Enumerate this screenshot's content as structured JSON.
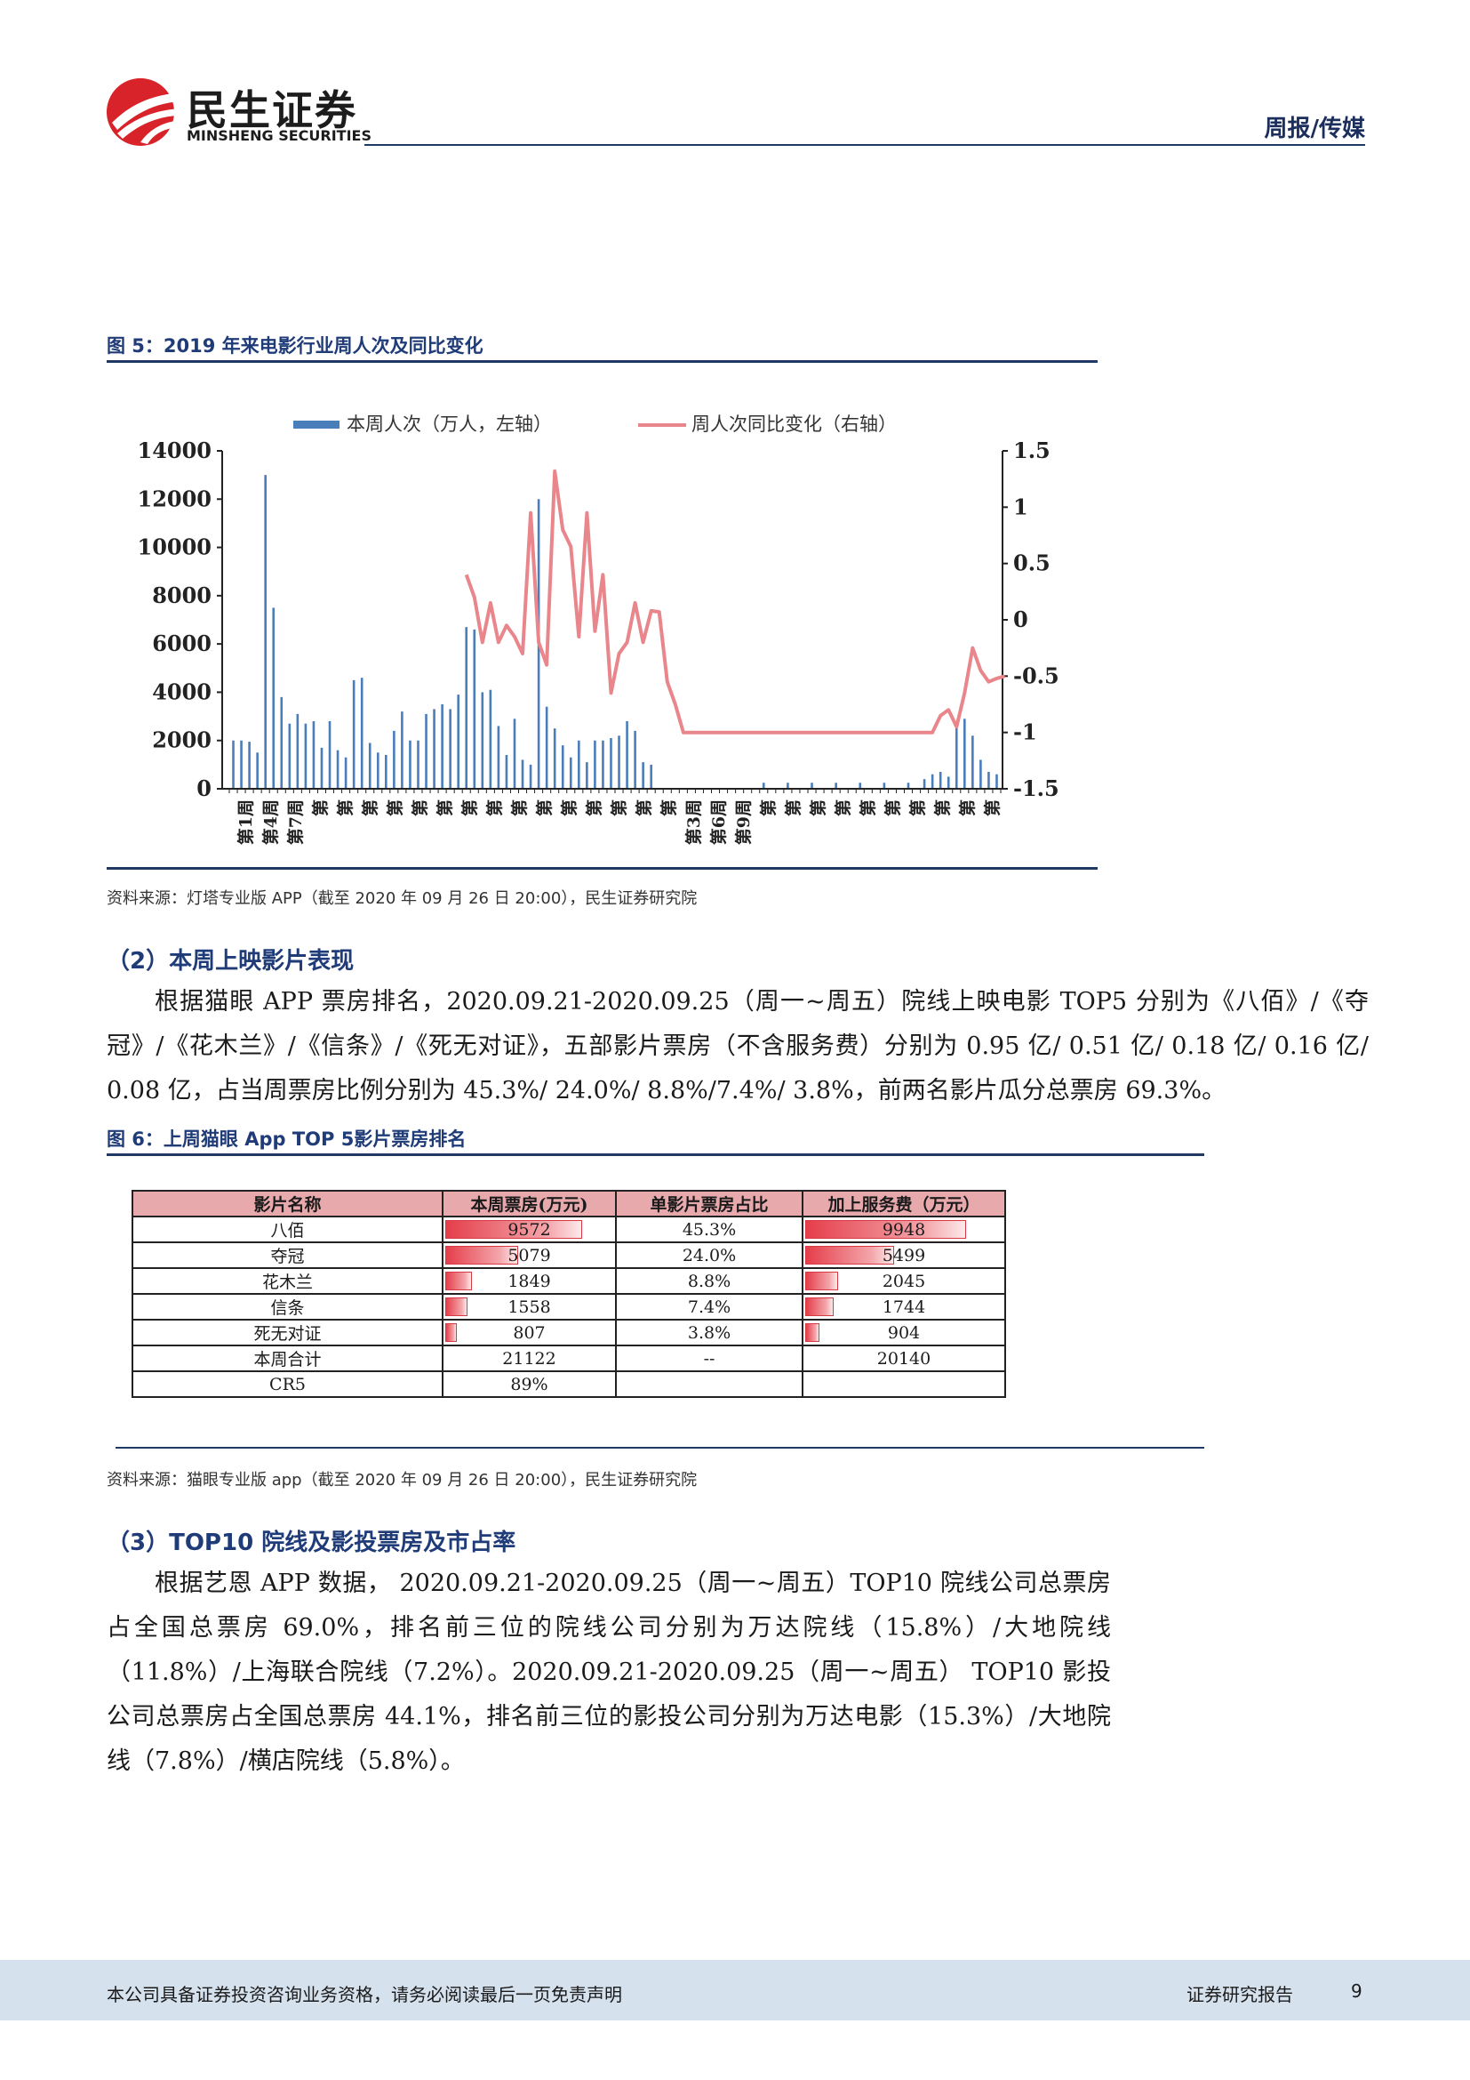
{
  "header": {
    "company_cn": "民生证券",
    "company_en": "MINSHENG SECURITIES",
    "category": "周报/传媒"
  },
  "figure5": {
    "title": "图 5：2019 年来电影行业周人次及同比变化",
    "source": "资料来源：灯塔专业版 APP（截至 2020 年 09 月 26 日 20:00），民生证券研究院"
  },
  "section2": {
    "title": "（2）本周上映影片表现",
    "paragraph": "根据猫眼 APP 票房排名，2020.09.21-2020.09.25（周一~周五）院线上映电影 TOP5 分别为《八佰》/《夺冠》/《花木兰》/《信条》/《死无对证》，五部影片票房（不含服务费）分别为 0.95 亿/ 0.51 亿/ 0.18 亿/ 0.16 亿/ 0.08 亿，占当周票房比例分别为 45.3%/ 24.0%/ 8.8%/7.4%/ 3.8%，前两名影片瓜分总票房 69.3%。"
  },
  "figure6": {
    "title": "图 6：上周猫眼 App TOP 5影片票房排名",
    "source": "资料来源：猫眼专业版 app（截至 2020 年 09 月 26 日 20:00），民生证券研究院",
    "headers": [
      "影片名称",
      "本周票房(万元)",
      "单影片票房占比",
      "加上服务费（万元）"
    ],
    "rows": [
      {
        "name": "八佰",
        "box": "9572",
        "box_frac": 1.0,
        "share": "45.3%",
        "with_fee": "9948",
        "fee_frac": 1.0
      },
      {
        "name": "夺冠",
        "box": "5079",
        "box_frac": 0.531,
        "share": "24.0%",
        "with_fee": "5499",
        "fee_frac": 0.553
      },
      {
        "name": "花木兰",
        "box": "1849",
        "box_frac": 0.193,
        "share": "8.8%",
        "with_fee": "2045",
        "fee_frac": 0.206
      },
      {
        "name": "信条",
        "box": "1558",
        "box_frac": 0.163,
        "share": "7.4%",
        "with_fee": "1744",
        "fee_frac": 0.175
      },
      {
        "name": "死无对证",
        "box": "807",
        "box_frac": 0.084,
        "share": "3.8%",
        "with_fee": "904",
        "fee_frac": 0.091
      },
      {
        "name": "本周合计",
        "box": "21122",
        "box_frac": 0,
        "share": "--",
        "with_fee": "20140",
        "fee_frac": 0
      },
      {
        "name": "CR5",
        "box": "89%",
        "box_frac": 0,
        "share": "",
        "with_fee": "",
        "fee_frac": 0
      }
    ]
  },
  "section3": {
    "title": "（3）TOP10 院线及影投票房及市占率",
    "paragraph": "根据艺恩 APP 数据， 2020.09.21-2020.09.25（周一~周五）TOP10 院线公司总票房占全国总票房 69.0%，排名前三位的院线公司分别为万达院线（15.8%）/大地院线（11.8%）/上海联合院线（7.2%）。2020.09.21-2020.09.25（周一~周五） TOP10 影投公司总票房占全国总票房 44.1%，排名前三位的影投公司分别为万达电影（15.3%）/大地院线（7.8%）/横店院线（5.8%）。"
  },
  "footer": {
    "disclaimer": "本公司具备证券投资咨询业务资格，请务必阅读最后一页免责声明",
    "report_type": "证券研究报告",
    "page_number": "9"
  },
  "chart_data": {
    "type": "bar+line",
    "legend": [
      "本周人次（万人，左轴）",
      "周人次同比变化（右轴）"
    ],
    "legend_placement": "top",
    "left_axis": {
      "min": 0,
      "max": 14000,
      "ticks": [
        "0",
        "2000",
        "4000",
        "6000",
        "8000",
        "10000",
        "12000",
        "14000"
      ]
    },
    "right_axis": {
      "min": -1.5,
      "max": 1.5,
      "ticks": [
        "-1.5",
        "-1",
        "-0.5",
        "0",
        "0.5",
        "1",
        "1.5"
      ]
    },
    "x_tick_labels": [
      "第1周",
      "第4周",
      "第7周",
      "第",
      "第",
      "第",
      "第",
      "第",
      "第",
      "第",
      "第",
      "第",
      "第",
      "第",
      "第",
      "第",
      "第",
      "第",
      "第3周",
      "第6周",
      "第9周",
      "第",
      "第",
      "第",
      "第",
      "第",
      "第",
      "第",
      "第",
      "第",
      "第"
    ],
    "series": [
      {
        "name": "本周人次（万人，左轴）",
        "color": "#4a7ebb",
        "values": [
          2000,
          2000,
          1950,
          1500,
          13000,
          7500,
          3800,
          2700,
          3100,
          2700,
          2800,
          1700,
          2800,
          1600,
          1300,
          4500,
          4600,
          1900,
          1500,
          1400,
          2400,
          3200,
          2000,
          2000,
          3100,
          3300,
          3500,
          3300,
          3900,
          6700,
          6600,
          4000,
          4100,
          2600,
          1400,
          2900,
          1200,
          1000,
          12000,
          3400,
          2500,
          1800,
          1300,
          2000,
          1100,
          2000,
          2000,
          2100,
          2200,
          2800,
          2400,
          1100,
          1000,
          10,
          5,
          5,
          5,
          5,
          5,
          5,
          5,
          5,
          5,
          30,
          5,
          5,
          250,
          5,
          5,
          250,
          5,
          5,
          250,
          5,
          5,
          250,
          5,
          5,
          250,
          5,
          5,
          250,
          5,
          10,
          250,
          5,
          400,
          600,
          700,
          500,
          2600,
          2900,
          2200,
          1200,
          700,
          600
        ]
      },
      {
        "name": "周人次同比变化（右轴）",
        "color": "#e8868c",
        "start_index": 29,
        "values": [
          0.4,
          0.2,
          -0.2,
          0.15,
          -0.2,
          -0.05,
          -0.15,
          -0.3,
          0.95,
          -0.2,
          -0.4,
          1.32,
          0.8,
          0.65,
          -0.15,
          0.95,
          -0.1,
          0.4,
          -0.65,
          -0.3,
          -0.2,
          0.15,
          -0.2,
          0.08,
          0.07,
          -0.55,
          -0.75,
          -1.0,
          -1.0,
          -1.0,
          -1.0,
          -1.0,
          -1.0,
          -1.0,
          -1.0,
          -1.0,
          -1.0,
          -1.0,
          -1.0,
          -1.0,
          -1.0,
          -1.0,
          -1.0,
          -1.0,
          -1.0,
          -1.0,
          -1.0,
          -1.0,
          -1.0,
          -1.0,
          -1.0,
          -1.0,
          -1.0,
          -1.0,
          -1.0,
          -1.0,
          -1.0,
          -1.0,
          -1.0,
          -0.85,
          -0.8,
          -0.95,
          -0.65,
          -0.25,
          -0.45,
          -0.55,
          -0.52,
          -0.5
        ]
      }
    ]
  }
}
